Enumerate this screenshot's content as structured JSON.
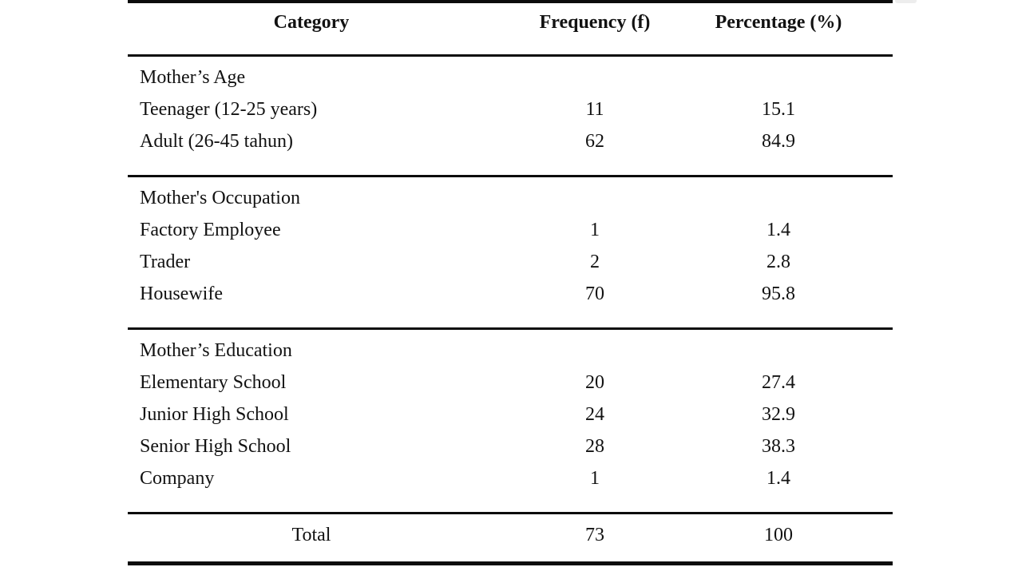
{
  "page": {
    "background_color": "#ffffff",
    "text_color": "#121212",
    "rule_color": "#0c0c0c"
  },
  "table": {
    "columns": [
      {
        "label": "Category"
      },
      {
        "label": "Frequency (f)"
      },
      {
        "label": "Percentage (%)"
      }
    ],
    "sections": [
      {
        "header": "Mother’s Age",
        "rows": [
          {
            "category": "Teenager (12-25 years)",
            "frequency": "11",
            "percentage": "15.1"
          },
          {
            "category": "Adult (26-45 tahun)",
            "frequency": "62",
            "percentage": "84.9"
          }
        ]
      },
      {
        "header": "Mother's Occupation",
        "rows": [
          {
            "category": "Factory Employee",
            "frequency": "1",
            "percentage": "1.4"
          },
          {
            "category": "Trader",
            "frequency": "2",
            "percentage": "2.8"
          },
          {
            "category": "Housewife",
            "frequency": "70",
            "percentage": "95.8"
          }
        ]
      },
      {
        "header": "Mother’s Education",
        "rows": [
          {
            "category": "Elementary School",
            "frequency": "20",
            "percentage": "27.4"
          },
          {
            "category": "Junior High School",
            "frequency": "24",
            "percentage": "32.9"
          },
          {
            "category": "Senior High School",
            "frequency": "28",
            "percentage": "38.3"
          },
          {
            "category": "Company",
            "frequency": "1",
            "percentage": "1.4"
          }
        ]
      }
    ],
    "total": {
      "label": "Total",
      "frequency": "73",
      "percentage": "100"
    }
  }
}
